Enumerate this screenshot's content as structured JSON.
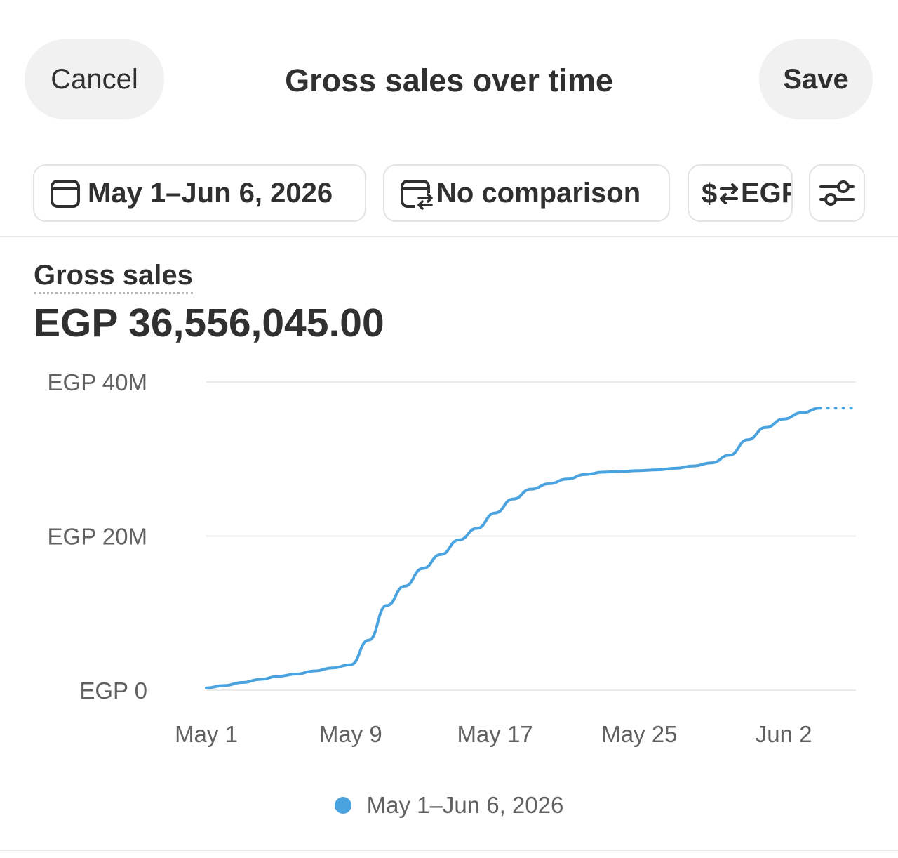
{
  "header": {
    "cancel_label": "Cancel",
    "title": "Gross sales over time",
    "save_label": "Save"
  },
  "filters": {
    "date_range": "May 1–Jun 6, 2026",
    "comparison": "No comparison",
    "currency": "EGP"
  },
  "metric": {
    "title": "Gross sales",
    "value": "EGP 36,556,045.00"
  },
  "colors": {
    "series": "#4aa3df",
    "gridline": "#ebebeb",
    "text": "#303030",
    "muted": "#616161"
  },
  "chart_data": {
    "type": "line",
    "y_tick_labels": [
      "EGP 0",
      "EGP 20M",
      "EGP 40M"
    ],
    "y_ticks": [
      0,
      20000000,
      40000000
    ],
    "ylim": [
      0,
      40000000
    ],
    "x_tick_labels": [
      "May 1",
      "May 9",
      "May 17",
      "May 25",
      "Jun 2"
    ],
    "x_tick_days": [
      1,
      9,
      17,
      25,
      33
    ],
    "xlim": [
      1,
      37
    ],
    "series": [
      {
        "name": "May 1–Jun 6, 2026",
        "x": [
          1,
          2,
          3,
          4,
          5,
          6,
          7,
          8,
          9,
          10,
          11,
          12,
          13,
          14,
          15,
          16,
          17,
          18,
          19,
          20,
          21,
          22,
          23,
          24,
          25,
          26,
          27,
          28,
          29,
          30,
          31,
          32,
          33,
          34,
          35,
          36,
          37
        ],
        "values": [
          300000,
          600000,
          1000000,
          1400000,
          1800000,
          2100000,
          2500000,
          2900000,
          3300000,
          6500000,
          11000000,
          13500000,
          15800000,
          17600000,
          19500000,
          21000000,
          23000000,
          24800000,
          26100000,
          26800000,
          27400000,
          28000000,
          28300000,
          28400000,
          28500000,
          28600000,
          28800000,
          29100000,
          29500000,
          30500000,
          32500000,
          34100000,
          35200000,
          36000000,
          36600000,
          36600000,
          36600000
        ]
      }
    ],
    "projected_from_index": 34
  }
}
